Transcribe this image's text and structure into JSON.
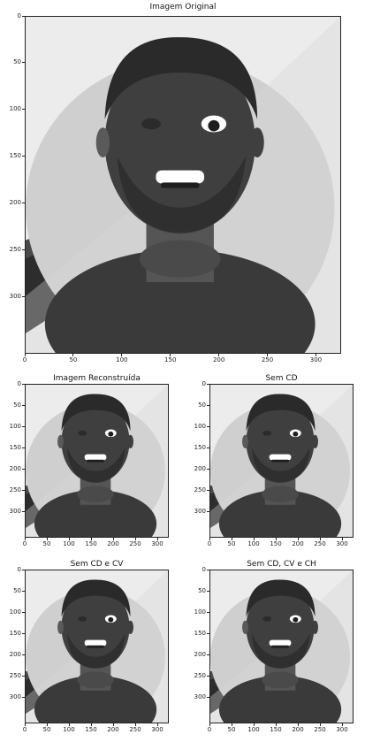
{
  "panels": [
    {
      "id": "original",
      "title": "Imagem Original"
    },
    {
      "id": "reconstructed",
      "title": "Imagem Reconstruída"
    },
    {
      "id": "no-cd",
      "title": "Sem CD"
    },
    {
      "id": "no-cd-cv",
      "title": "Sem CD e CV"
    },
    {
      "id": "no-cd-cv-ch",
      "title": "Sem CD, CV e CH"
    }
  ],
  "axes": {
    "x_ticks": [
      "0",
      "50",
      "100",
      "150",
      "200",
      "250",
      "300"
    ],
    "y_ticks": [
      "0",
      "50",
      "100",
      "150",
      "200",
      "250",
      "300"
    ],
    "x_values": [
      0,
      50,
      100,
      150,
      200,
      250,
      300
    ],
    "y_values": [
      0,
      50,
      100,
      150,
      200,
      250,
      300
    ],
    "xlim": [
      0,
      326
    ],
    "ylim": [
      0,
      361
    ]
  },
  "colors": {
    "background_left": "#ececec",
    "circle": "#cfcfcf",
    "shirt": "#3a3a3a",
    "neck": "#555555",
    "face": "#3f3f3f",
    "hair": "#2a2a2a"
  }
}
